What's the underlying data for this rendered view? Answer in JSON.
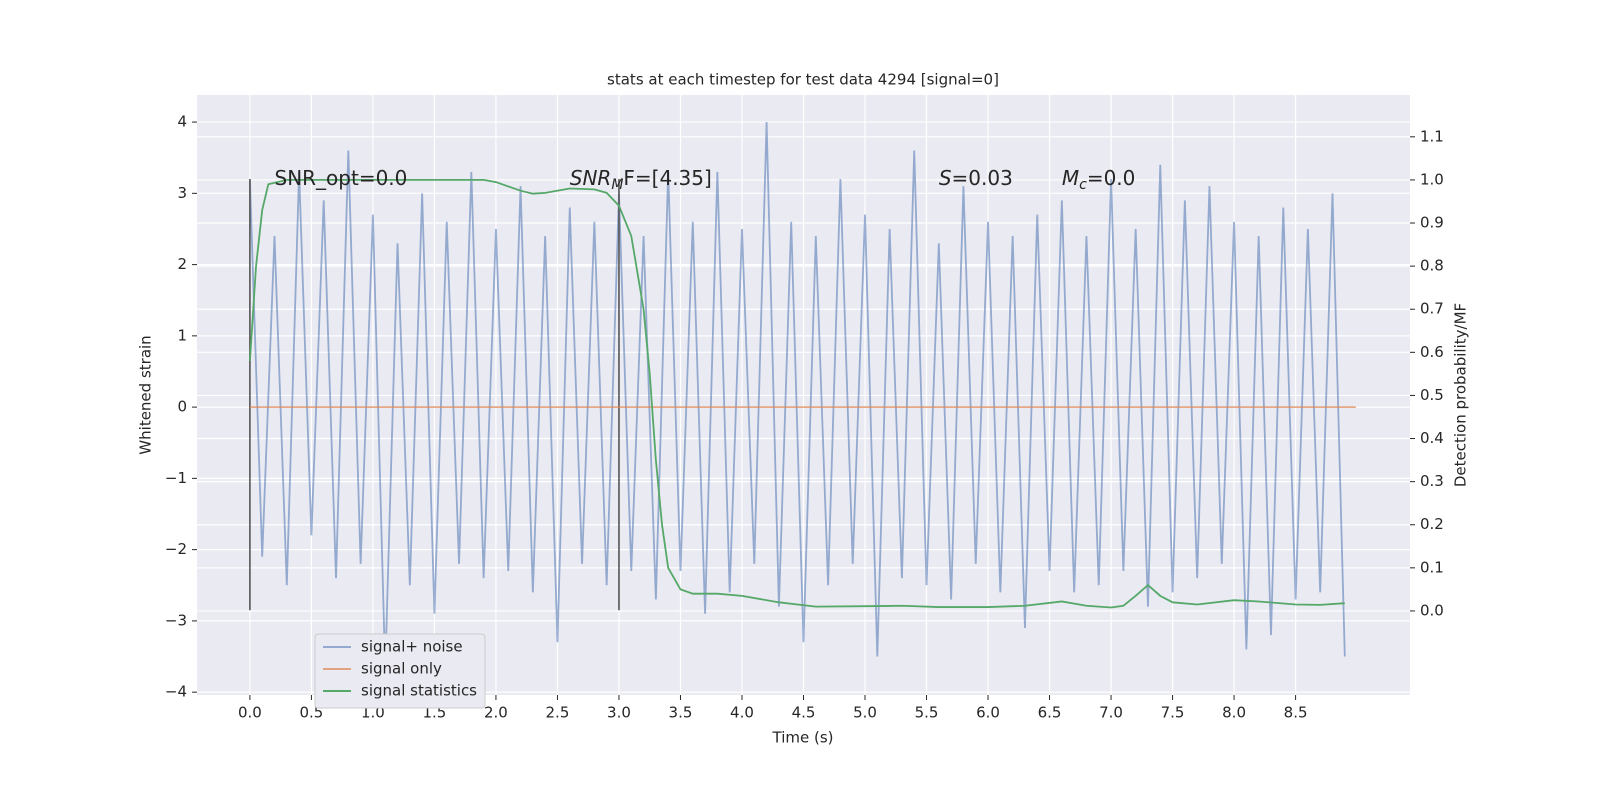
{
  "chart_data": {
    "type": "line",
    "title": "stats at each timestep for test data 4294 [signal=0]",
    "xlabel": "Time (s)",
    "ylabel": "Whitened strain",
    "y2label": "Detection probability/MF",
    "xlim": [
      -0.43,
      9.43
    ],
    "ylim": [
      -4.04,
      4.38
    ],
    "y2lim": [
      -0.195,
      1.197
    ],
    "xticks": [
      {
        "value": 0,
        "label": "0.0"
      },
      {
        "value": 0.5,
        "label": "0.5"
      },
      {
        "value": 1,
        "label": "1.0"
      },
      {
        "value": 1.5,
        "label": "1.5"
      },
      {
        "value": 2,
        "label": "2.0"
      },
      {
        "value": 2.5,
        "label": "2.5"
      },
      {
        "value": 3,
        "label": "3.0"
      },
      {
        "value": 3.5,
        "label": "3.5"
      },
      {
        "value": 4,
        "label": "4.0"
      },
      {
        "value": 4.5,
        "label": "4.5"
      },
      {
        "value": 5,
        "label": "5.0"
      },
      {
        "value": 5.5,
        "label": "5.5"
      },
      {
        "value": 6,
        "label": "6.0"
      },
      {
        "value": 6.5,
        "label": "6.5"
      },
      {
        "value": 7,
        "label": "7.0"
      },
      {
        "value": 7.5,
        "label": "7.5"
      },
      {
        "value": 8,
        "label": "8.0"
      },
      {
        "value": 8.5,
        "label": "8.5"
      }
    ],
    "yticks": [
      {
        "value": -4,
        "label": "−4"
      },
      {
        "value": -3,
        "label": "−3"
      },
      {
        "value": -2,
        "label": "−2"
      },
      {
        "value": -1,
        "label": "−1"
      },
      0,
      1,
      2,
      3,
      4
    ],
    "y2ticks": [
      {
        "value": 0,
        "label": "0.0"
      },
      {
        "value": 0.1,
        "label": "0.1"
      },
      {
        "value": 0.2,
        "label": "0.2"
      },
      {
        "value": 0.3,
        "label": "0.3"
      },
      {
        "value": 0.4,
        "label": "0.4"
      },
      {
        "value": 0.5,
        "label": "0.5"
      },
      {
        "value": 0.6,
        "label": "0.6"
      },
      {
        "value": 0.7,
        "label": "0.7"
      },
      {
        "value": 0.8,
        "label": "0.8"
      },
      {
        "value": 0.9,
        "label": "0.9"
      },
      {
        "value": 1,
        "label": "1.0"
      },
      {
        "value": 1.1,
        "label": "1.1"
      }
    ],
    "grid": true,
    "legend": "lower left",
    "background": "#eaeaf2",
    "series": [
      {
        "name": "signal+ noise",
        "color": "#4c72b0",
        "opacity": 0.55,
        "x": [
          0.0,
          0.1,
          0.2,
          0.3,
          0.4,
          0.5,
          0.6,
          0.7,
          0.8,
          0.9,
          1.0,
          1.1,
          1.2,
          1.3,
          1.4,
          1.5,
          1.6,
          1.7,
          1.8,
          1.9,
          2.0,
          2.1,
          2.2,
          2.3,
          2.4,
          2.5,
          2.6,
          2.7,
          2.8,
          2.9,
          3.0,
          3.1,
          3.2,
          3.3,
          3.4,
          3.5,
          3.6,
          3.7,
          3.8,
          3.9,
          4.0,
          4.1,
          4.2,
          4.3,
          4.4,
          4.5,
          4.6,
          4.7,
          4.8,
          4.9,
          5.0,
          5.1,
          5.2,
          5.3,
          5.4,
          5.5,
          5.6,
          5.7,
          5.8,
          5.9,
          6.0,
          6.1,
          6.2,
          6.3,
          6.4,
          6.5,
          6.6,
          6.7,
          6.8,
          6.9,
          7.0,
          7.1,
          7.2,
          7.3,
          7.4,
          7.5,
          7.6,
          7.7,
          7.8,
          7.9,
          8.0,
          8.1,
          8.2,
          8.3,
          8.4,
          8.5,
          8.6,
          8.7,
          8.8,
          8.9
        ],
        "values": [
          3.2,
          -2.1,
          2.4,
          -2.5,
          3.3,
          -1.8,
          2.9,
          -2.4,
          3.6,
          -2.2,
          2.7,
          -3.7,
          2.3,
          -2.5,
          3.0,
          -2.9,
          2.6,
          -2.2,
          3.3,
          -2.4,
          2.5,
          -2.3,
          3.1,
          -2.6,
          2.4,
          -3.3,
          2.8,
          -2.2,
          2.6,
          -2.5,
          3.0,
          -2.3,
          2.4,
          -2.7,
          3.3,
          -2.3,
          2.6,
          -2.9,
          3.3,
          -2.6,
          2.5,
          -2.2,
          4.0,
          -2.8,
          2.6,
          -3.3,
          2.4,
          -2.5,
          3.2,
          -2.2,
          2.7,
          -3.5,
          2.5,
          -2.4,
          3.6,
          -2.5,
          2.3,
          -2.7,
          3.1,
          -2.2,
          2.6,
          -2.6,
          2.4,
          -3.1,
          2.7,
          -2.3,
          2.9,
          -2.6,
          2.4,
          -2.5,
          3.2,
          -2.3,
          2.5,
          -2.8,
          3.4,
          -2.6,
          2.9,
          -2.4,
          3.1,
          -2.2,
          2.6,
          -3.4,
          2.4,
          -3.2,
          2.8,
          -2.7,
          2.5,
          -2.6,
          3.0,
          -3.5
        ]
      },
      {
        "name": "signal only",
        "color": "#dd8452",
        "opacity": 0.7,
        "x": [
          0.0,
          8.99
        ],
        "values": [
          0,
          0
        ]
      },
      {
        "name": "signal statistics",
        "color": "#55a868",
        "opacity": 1,
        "axis": "y2",
        "x": [
          0,
          0.05,
          0.1,
          0.15,
          0.3,
          1.0,
          1.9,
          2.0,
          2.2,
          2.3,
          2.4,
          2.6,
          2.8,
          2.9,
          3.0,
          3.1,
          3.2,
          3.25,
          3.3,
          3.35,
          3.4,
          3.5,
          3.6,
          3.8,
          4.0,
          4.3,
          4.6,
          5.0,
          5.3,
          5.6,
          6.0,
          6.3,
          6.6,
          6.8,
          7.0,
          7.1,
          7.2,
          7.3,
          7.4,
          7.5,
          7.7,
          8.0,
          8.2,
          8.5,
          8.7,
          8.9
        ],
        "values": [
          0.58,
          0.8,
          0.93,
          0.99,
          1.0,
          1.0,
          1.0,
          0.995,
          0.975,
          0.968,
          0.97,
          0.98,
          0.978,
          0.97,
          0.94,
          0.87,
          0.7,
          0.55,
          0.35,
          0.2,
          0.1,
          0.05,
          0.04,
          0.04,
          0.035,
          0.02,
          0.01,
          0.011,
          0.012,
          0.009,
          0.009,
          0.012,
          0.022,
          0.012,
          0.008,
          0.012,
          0.035,
          0.06,
          0.035,
          0.02,
          0.015,
          0.025,
          0.022,
          0.015,
          0.014,
          0.018
        ]
      }
    ],
    "vlines": [
      {
        "x": 0,
        "ymin": -2.85,
        "ymax": 3.2,
        "color": "#555555"
      },
      {
        "x": 3.0,
        "ymin": -2.85,
        "ymax": 3.2,
        "color": "#555555"
      }
    ],
    "annotations": [
      {
        "x": 0.2,
        "y": 3.2,
        "parts": [
          {
            "text": "SNR_opt=0.0"
          }
        ]
      },
      {
        "x": 2.6,
        "y": 3.2,
        "parts": [
          {
            "text": "SNR",
            "style": "italic"
          },
          {
            "text": "M",
            "style": "sub"
          },
          {
            "text": "F=[4.35]"
          }
        ]
      },
      {
        "x": 5.6,
        "y": 3.2,
        "parts": [
          {
            "text": "S",
            "style": "italic"
          },
          {
            "text": "=0.03"
          }
        ]
      },
      {
        "x": 6.6,
        "y": 3.2,
        "parts": [
          {
            "text": "M",
            "style": "italic"
          },
          {
            "text": "c",
            "style": "sub"
          },
          {
            "text": "=0.0"
          }
        ]
      }
    ]
  }
}
